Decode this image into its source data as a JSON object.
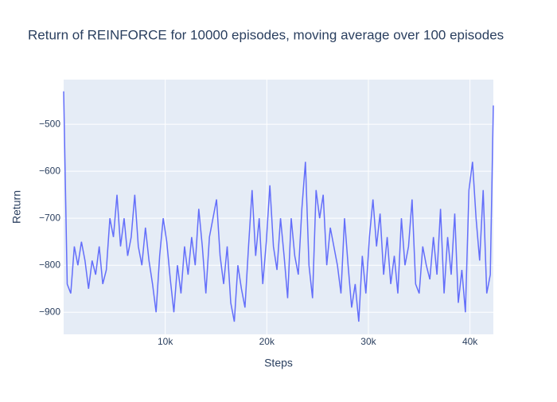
{
  "chart_data": {
    "type": "line",
    "title": "Return of REINFORCE for 10000 episodes, moving average over 100 episodes",
    "x_label": "Steps",
    "y_label": "Return",
    "color": "#636efa",
    "grid": true,
    "xlim": [
      0,
      42300
    ],
    "ylim": [
      -947,
      -405
    ],
    "xticks": [
      {
        "value": 10000,
        "label": "10k"
      },
      {
        "value": 20000,
        "label": "20k"
      },
      {
        "value": 30000,
        "label": "30k"
      },
      {
        "value": 40000,
        "label": "40k"
      }
    ],
    "yticks": [
      {
        "value": -500,
        "label": "−500"
      },
      {
        "value": -600,
        "label": "−600"
      },
      {
        "value": -700,
        "label": "−700"
      },
      {
        "value": -800,
        "label": "−800"
      },
      {
        "value": -900,
        "label": "−900"
      }
    ],
    "x": [
      0,
      350,
      700,
      1050,
      1400,
      1750,
      2100,
      2450,
      2800,
      3150,
      3500,
      3850,
      4200,
      4550,
      4900,
      5250,
      5600,
      5950,
      6300,
      6650,
      7000,
      7350,
      7700,
      8050,
      8400,
      8750,
      9100,
      9450,
      9800,
      10150,
      10500,
      10850,
      11200,
      11550,
      11900,
      12250,
      12600,
      12950,
      13300,
      13650,
      14000,
      14350,
      14700,
      15050,
      15400,
      15750,
      16100,
      16450,
      16800,
      17150,
      17500,
      17850,
      18200,
      18550,
      18900,
      19250,
      19600,
      19950,
      20300,
      20650,
      21000,
      21350,
      21700,
      22050,
      22400,
      22750,
      23100,
      23450,
      23800,
      24150,
      24500,
      24850,
      25200,
      25550,
      25900,
      26250,
      26600,
      26950,
      27300,
      27650,
      28000,
      28350,
      28700,
      29050,
      29400,
      29750,
      30100,
      30450,
      30800,
      31150,
      31500,
      31850,
      32200,
      32550,
      32900,
      33250,
      33600,
      33950,
      34300,
      34650,
      35000,
      35350,
      35700,
      36050,
      36400,
      36750,
      37100,
      37450,
      37800,
      38150,
      38500,
      38850,
      39200,
      39550,
      39900,
      40250,
      40600,
      40950,
      41300,
      41650,
      42000,
      42300
    ],
    "values": [
      -430,
      -840,
      -860,
      -760,
      -800,
      -750,
      -790,
      -850,
      -790,
      -820,
      -760,
      -840,
      -810,
      -700,
      -740,
      -650,
      -760,
      -700,
      -780,
      -740,
      -650,
      -760,
      -800,
      -720,
      -790,
      -840,
      -900,
      -780,
      -700,
      -750,
      -830,
      -900,
      -800,
      -860,
      -760,
      -820,
      -740,
      -800,
      -680,
      -760,
      -860,
      -740,
      -700,
      -660,
      -780,
      -840,
      -760,
      -880,
      -920,
      -800,
      -850,
      -890,
      -760,
      -640,
      -780,
      -700,
      -840,
      -750,
      -630,
      -760,
      -810,
      -700,
      -780,
      -870,
      -700,
      -780,
      -820,
      -680,
      -580,
      -800,
      -870,
      -640,
      -700,
      -650,
      -800,
      -720,
      -760,
      -800,
      -860,
      -700,
      -800,
      -890,
      -840,
      -920,
      -780,
      -860,
      -740,
      -660,
      -760,
      -690,
      -820,
      -740,
      -840,
      -780,
      -860,
      -700,
      -800,
      -760,
      -660,
      -840,
      -860,
      -760,
      -800,
      -830,
      -740,
      -820,
      -680,
      -860,
      -740,
      -820,
      -690,
      -880,
      -810,
      -900,
      -640,
      -580,
      -700,
      -790,
      -640,
      -860,
      -820,
      -460
    ]
  }
}
